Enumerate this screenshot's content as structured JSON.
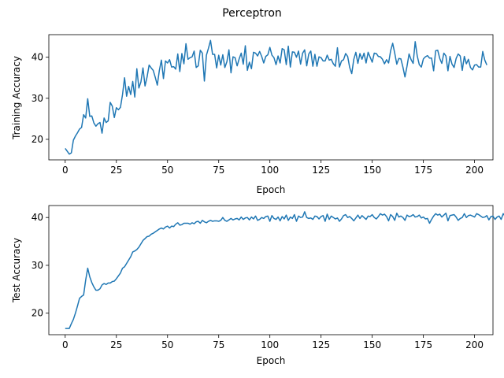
{
  "figure": {
    "title": "Perceptron"
  },
  "chart_data": [
    {
      "type": "line",
      "title": "",
      "xlabel": "Epoch",
      "ylabel": "Training Accuracy",
      "xlim": [
        -8,
        209
      ],
      "ylim": [
        15,
        45.5
      ],
      "xticks": [
        0,
        25,
        50,
        75,
        100,
        125,
        150,
        175,
        200
      ],
      "yticks": [
        20,
        30,
        40
      ],
      "grid": false,
      "legend": "none",
      "color": "#1f77b4",
      "series": [
        {
          "values": [
            17.8,
            17.1,
            16.4,
            16.7,
            19.8,
            20.8,
            21.6,
            22.5,
            22.9,
            26.0,
            25.2,
            29.9,
            25.6,
            25.7,
            24.0,
            23.2,
            23.8,
            24.1,
            21.5,
            25.2,
            24.1,
            24.5,
            29.0,
            28.1,
            25.3,
            27.7,
            27.2,
            27.8,
            30.9,
            35.0,
            30.5,
            32.9,
            30.9,
            34.1,
            30.3,
            37.2,
            32.5,
            34.0,
            37.4,
            33.0,
            35.2,
            38.1,
            37.4,
            36.8,
            35.1,
            33.2,
            36.8,
            39.3,
            34.8,
            39.1,
            38.6,
            39.4,
            37.6,
            37.7,
            37.1,
            40.8,
            36.5,
            40.9,
            38.4,
            43.3,
            39.5,
            39.9,
            40.1,
            41.5,
            37.5,
            37.9,
            41.7,
            41.0,
            34.2,
            40.5,
            42.2,
            44.1,
            40.7,
            40.7,
            37.4,
            40.5,
            38.1,
            40.6,
            37.5,
            38.9,
            41.8,
            36.2,
            40.1,
            39.9,
            37.9,
            39.6,
            41.0,
            38.3,
            42.8,
            36.8,
            38.8,
            37.2,
            41.2,
            41.0,
            40.3,
            41.4,
            40.2,
            38.6,
            40.2,
            40.6,
            42.4,
            40.5,
            39.9,
            38.2,
            40.3,
            38.6,
            42.1,
            41.8,
            38.2,
            42.7,
            37.6,
            41.3,
            41.2,
            40.0,
            41.5,
            38.3,
            41.0,
            41.8,
            37.9,
            40.8,
            41.5,
            37.8,
            40.7,
            37.8,
            40.1,
            39.9,
            39.1,
            39.1,
            40.5,
            39.3,
            39.5,
            38.4,
            37.8,
            42.3,
            37.6,
            39.1,
            39.4,
            40.9,
            40.2,
            37.5,
            36.0,
            39.5,
            41.2,
            38.5,
            40.9,
            39.5,
            41.0,
            38.6,
            41.2,
            40.0,
            38.8,
            41.0,
            40.9,
            40.2,
            40.1,
            39.5,
            38.4,
            39.4,
            38.6,
            41.6,
            43.4,
            41.0,
            38.3,
            39.7,
            39.6,
            37.6,
            35.2,
            37.8,
            40.8,
            39.4,
            38.5,
            43.8,
            40.3,
            38.2,
            37.6,
            39.6,
            40.1,
            40.4,
            39.8,
            39.8,
            36.7,
            41.6,
            41.7,
            39.7,
            38.5,
            41.0,
            40.3,
            36.7,
            40.2,
            38.3,
            37.5,
            39.7,
            40.8,
            40.3,
            36.8,
            40.2,
            38.4,
            39.5,
            37.5,
            36.9,
            38.1,
            38.2,
            37.6,
            37.6,
            41.4,
            39.3,
            38.1
          ]
        }
      ]
    },
    {
      "type": "line",
      "title": "",
      "xlabel": "Epoch",
      "ylabel": "Test Accuracy",
      "xlim": [
        -8,
        209
      ],
      "ylim": [
        15.5,
        42.5
      ],
      "xticks": [
        0,
        25,
        50,
        75,
        100,
        125,
        150,
        175,
        200
      ],
      "yticks": [
        20,
        30,
        40
      ],
      "grid": false,
      "legend": "none",
      "color": "#1f77b4",
      "series": [
        {
          "values": [
            16.8,
            16.8,
            16.8,
            17.8,
            18.7,
            20.0,
            21.5,
            23.1,
            23.5,
            23.8,
            26.9,
            29.4,
            27.6,
            26.4,
            25.5,
            24.8,
            24.8,
            25.1,
            25.9,
            26.2,
            26.0,
            26.3,
            26.3,
            26.6,
            26.7,
            27.2,
            27.8,
            28.4,
            29.4,
            29.7,
            30.4,
            31.1,
            31.8,
            32.8,
            33.0,
            33.3,
            33.8,
            34.5,
            35.2,
            35.6,
            36.0,
            36.1,
            36.5,
            36.7,
            37.0,
            37.3,
            37.6,
            37.8,
            37.6,
            38.0,
            38.2,
            37.8,
            38.2,
            38.1,
            38.6,
            38.9,
            38.4,
            38.5,
            38.8,
            38.8,
            38.8,
            38.6,
            38.9,
            38.7,
            39.1,
            39.2,
            38.8,
            39.4,
            39.1,
            38.9,
            39.2,
            39.4,
            39.2,
            39.3,
            39.3,
            39.2,
            39.4,
            40.0,
            39.4,
            39.2,
            39.5,
            39.8,
            39.5,
            39.7,
            39.8,
            39.5,
            40.1,
            39.6,
            39.9,
            40.0,
            39.5,
            40.1,
            39.7,
            40.3,
            39.4,
            39.6,
            40.0,
            39.8,
            40.2,
            40.3,
            39.2,
            40.4,
            39.8,
            39.6,
            40.1,
            39.3,
            40.2,
            39.7,
            40.5,
            39.4,
            40.1,
            39.8,
            40.6,
            39.2,
            40.3,
            40.0,
            40.1,
            41.2,
            40.0,
            39.8,
            39.9,
            39.6,
            40.3,
            40.2,
            39.7,
            40.2,
            40.4,
            39.2,
            40.7,
            39.6,
            40.3,
            40.0,
            39.7,
            39.9,
            39.2,
            39.7,
            40.4,
            40.6,
            40.0,
            40.2,
            39.8,
            39.3,
            39.9,
            40.5,
            39.8,
            40.4,
            40.0,
            39.6,
            40.3,
            40.2,
            40.6,
            40.0,
            39.7,
            40.2,
            40.8,
            40.5,
            40.7,
            40.2,
            39.3,
            40.6,
            40.2,
            39.4,
            40.9,
            40.1,
            40.3,
            40.0,
            39.4,
            40.5,
            40.2,
            40.3,
            40.6,
            40.1,
            40.2,
            40.5,
            39.9,
            40.1,
            39.7,
            39.8,
            38.8,
            39.6,
            40.3,
            40.8,
            40.5,
            40.7,
            40.1,
            40.5,
            40.9,
            39.3,
            40.4,
            40.5,
            40.6,
            40.1,
            39.4,
            39.8,
            40.0,
            40.8,
            40.0,
            40.4,
            40.5,
            40.3,
            40.1,
            40.8,
            40.6,
            40.3,
            40.0,
            40.1,
            40.4,
            39.5,
            40.2,
            40.3,
            39.6,
            40.1,
            40.3,
            39.6,
            40.8,
            40.2,
            39.7
          ]
        }
      ]
    }
  ]
}
